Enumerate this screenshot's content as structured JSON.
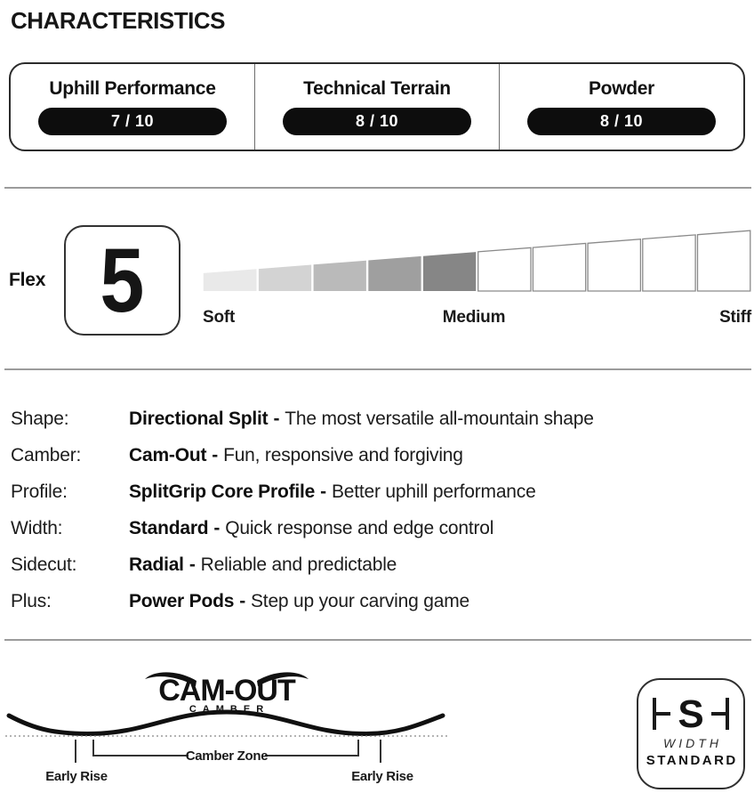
{
  "page": {
    "title": "CHARACTERISTICS"
  },
  "ratings": {
    "pill_bg": "#0d0d0d",
    "pill_text_color": "#ffffff",
    "items": [
      {
        "label": "Uphill Performance",
        "score": "7 / 10"
      },
      {
        "label": "Technical Terrain",
        "score": "8 / 10"
      },
      {
        "label": "Powder",
        "score": "8 / 10"
      }
    ]
  },
  "flex": {
    "label": "Flex",
    "value": "5",
    "scale_labels": {
      "min": "Soft",
      "mid": "Medium",
      "max": "Stiff"
    },
    "segments_total": 10,
    "segments_filled": 5,
    "filled_colors": [
      "#e9e9e9",
      "#d3d3d3",
      "#bababa",
      "#9f9f9f",
      "#868686"
    ],
    "empty_fill": "#ffffff",
    "empty_border_color": "#8a8a8a"
  },
  "specs": {
    "separator": "-",
    "rows": [
      {
        "label": "Shape:",
        "value": "Directional Split",
        "desc": "The most versatile all-mountain shape"
      },
      {
        "label": "Camber:",
        "value": "Cam-Out",
        "desc": "Fun, responsive and forgiving"
      },
      {
        "label": "Profile:",
        "value": "SplitGrip Core Profile",
        "desc": "Better uphill performance"
      },
      {
        "label": "Width:",
        "value": "Standard",
        "desc": "Quick response and edge control"
      },
      {
        "label": "Sidecut:",
        "value": "Radial",
        "desc": "Reliable and predictable"
      },
      {
        "label": "Plus:",
        "value": "Power Pods",
        "desc": "Step up your carving game"
      }
    ]
  },
  "camber_diagram": {
    "logo_title": "CAM-OUT",
    "logo_subtitle": "CAMBER",
    "camber_zone_label": "Camber Zone",
    "early_rise_left_label": "Early Rise",
    "early_rise_right_label": "Early Rise"
  },
  "width_badge": {
    "logo_letter": "S",
    "line1": "WIDTH",
    "line2": "STANDARD"
  }
}
